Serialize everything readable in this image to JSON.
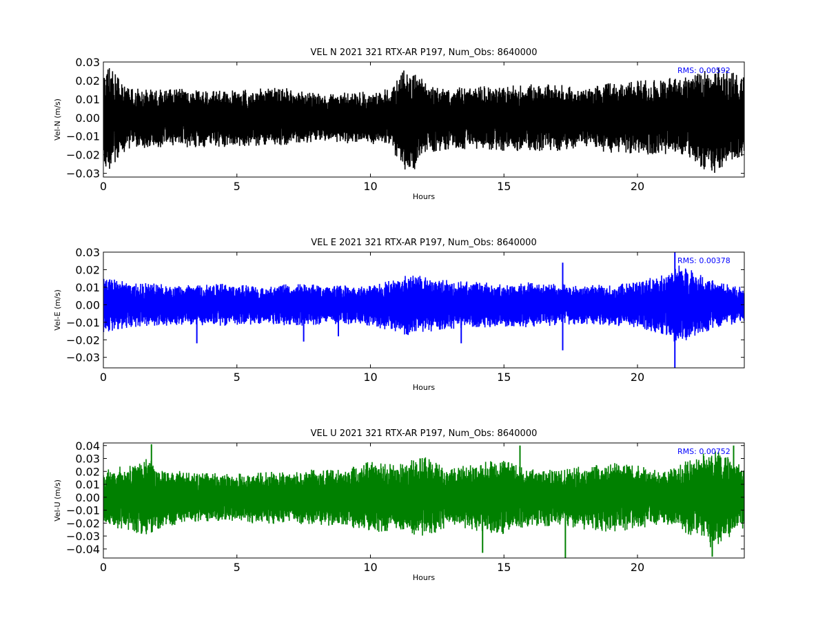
{
  "chart_data": [
    {
      "type": "line",
      "title": "VEL N 2021 321 RTX-AR  P197, Num_Obs: 8640000",
      "xlabel": "Hours",
      "ylabel": "Vel-N (m/s)",
      "xlim": [
        0,
        24
      ],
      "ylim": [
        -0.032,
        0.03
      ],
      "xticks": [
        "0",
        "5",
        "10",
        "15",
        "20"
      ],
      "xtick_values": [
        0,
        5,
        10,
        15,
        20
      ],
      "yticks": [
        "0.03",
        "0.02",
        "0.01",
        "0.00",
        "−0.01",
        "−0.02",
        "−0.03"
      ],
      "ytick_values": [
        0.03,
        0.02,
        0.01,
        0.0,
        -0.01,
        -0.02,
        -0.03
      ],
      "rms_label": "RMS:  0.00592",
      "rms_color": "#0000ff",
      "series": [
        {
          "color": "#000000",
          "envelope": {
            "hours": [
              0,
              0.3,
              0.6,
              1,
              2,
              3,
              4,
              5,
              6,
              7,
              8,
              9,
              10,
              10.8,
              11.3,
              11.7,
              12,
              13,
              14,
              15,
              16,
              17,
              18,
              19,
              20,
              21,
              22,
              22.8,
              23.5,
              24
            ],
            "upper": [
              0.029,
              0.026,
              0.021,
              0.016,
              0.015,
              0.016,
              0.015,
              0.015,
              0.016,
              0.016,
              0.013,
              0.014,
              0.014,
              0.016,
              0.028,
              0.027,
              0.019,
              0.016,
              0.017,
              0.017,
              0.018,
              0.018,
              0.016,
              0.019,
              0.02,
              0.021,
              0.023,
              0.028,
              0.026,
              0.022
            ],
            "lower": [
              -0.031,
              -0.027,
              -0.022,
              -0.017,
              -0.016,
              -0.016,
              -0.016,
              -0.016,
              -0.015,
              -0.015,
              -0.013,
              -0.014,
              -0.014,
              -0.017,
              -0.031,
              -0.028,
              -0.02,
              -0.017,
              -0.017,
              -0.018,
              -0.018,
              -0.018,
              -0.017,
              -0.019,
              -0.02,
              -0.02,
              -0.023,
              -0.031,
              -0.025,
              -0.021
            ]
          }
        }
      ]
    },
    {
      "type": "line",
      "title": "VEL E 2021 321 RTX-AR  P197, Num_Obs: 8640000",
      "xlabel": "Hours",
      "ylabel": "Vel-E (m/s)",
      "xlim": [
        0,
        24
      ],
      "ylim": [
        -0.036,
        0.03
      ],
      "xticks": [
        "0",
        "5",
        "10",
        "15",
        "20"
      ],
      "xtick_values": [
        0,
        5,
        10,
        15,
        20
      ],
      "yticks": [
        "0.03",
        "0.02",
        "0.01",
        "0.00",
        "−0.01",
        "−0.02",
        "−0.03"
      ],
      "ytick_values": [
        0.03,
        0.02,
        0.01,
        0.0,
        -0.01,
        -0.02,
        -0.03
      ],
      "rms_label": "RMS:  0.00378",
      "rms_color": "#0000ff",
      "series": [
        {
          "color": "#0000ff",
          "envelope": {
            "hours": [
              0,
              1,
              2,
              3,
              4,
              5,
              6,
              7,
              8,
              9,
              10,
              11,
              11.5,
              12,
              13,
              14,
              15,
              16,
              17,
              18,
              19,
              20,
              21,
              21.5,
              22,
              23,
              24
            ],
            "upper": [
              0.016,
              0.013,
              0.012,
              0.011,
              0.012,
              0.012,
              0.01,
              0.012,
              0.012,
              0.011,
              0.011,
              0.015,
              0.018,
              0.016,
              0.014,
              0.013,
              0.012,
              0.013,
              0.012,
              0.011,
              0.012,
              0.013,
              0.018,
              0.023,
              0.02,
              0.013,
              0.01
            ],
            "lower": [
              -0.016,
              -0.013,
              -0.012,
              -0.012,
              -0.012,
              -0.012,
              -0.011,
              -0.012,
              -0.012,
              -0.011,
              -0.012,
              -0.016,
              -0.018,
              -0.016,
              -0.014,
              -0.013,
              -0.013,
              -0.013,
              -0.012,
              -0.011,
              -0.012,
              -0.013,
              -0.018,
              -0.023,
              -0.019,
              -0.013,
              -0.01
            ]
          },
          "spikes": [
            {
              "hour": 3.5,
              "value": -0.022
            },
            {
              "hour": 7.5,
              "value": -0.021
            },
            {
              "hour": 8.8,
              "value": -0.018
            },
            {
              "hour": 13.4,
              "value": -0.022
            },
            {
              "hour": 17.2,
              "value": 0.024
            },
            {
              "hour": 17.2,
              "value": -0.026
            },
            {
              "hour": 21.4,
              "value": 0.03
            },
            {
              "hour": 21.4,
              "value": -0.036
            }
          ]
        }
      ]
    },
    {
      "type": "line",
      "title": "VEL U 2021 321 RTX-AR  P197, Num_Obs: 8640000",
      "xlabel": "Hours",
      "ylabel": "Vel-U (m/s)",
      "xlim": [
        0,
        24
      ],
      "ylim": [
        -0.047,
        0.042
      ],
      "xticks": [
        "0",
        "5",
        "10",
        "15",
        "20"
      ],
      "xtick_values": [
        0,
        5,
        10,
        15,
        20
      ],
      "yticks": [
        "0.04",
        "0.03",
        "0.02",
        "0.01",
        "0.00",
        "−0.01",
        "−0.02",
        "−0.03",
        "−0.04"
      ],
      "ytick_values": [
        0.04,
        0.03,
        0.02,
        0.01,
        0.0,
        -0.01,
        -0.02,
        -0.03,
        -0.04
      ],
      "rms_label": "RMS:  0.00752",
      "rms_color": "#0000ff",
      "series": [
        {
          "color": "#008000",
          "envelope": {
            "hours": [
              0,
              1,
              1.8,
              2,
              3,
              4,
              5,
              6,
              7,
              8,
              9,
              10,
              11,
              12,
              13,
              14,
              15,
              16,
              17,
              18,
              19,
              20,
              21,
              22,
              22.8,
              23.5,
              24
            ],
            "upper": [
              0.022,
              0.025,
              0.031,
              0.024,
              0.02,
              0.019,
              0.019,
              0.02,
              0.02,
              0.022,
              0.022,
              0.028,
              0.025,
              0.032,
              0.022,
              0.027,
              0.029,
              0.022,
              0.022,
              0.024,
              0.027,
              0.025,
              0.02,
              0.03,
              0.038,
              0.03,
              0.024
            ],
            "lower": [
              -0.022,
              -0.026,
              -0.031,
              -0.025,
              -0.02,
              -0.019,
              -0.019,
              -0.021,
              -0.02,
              -0.022,
              -0.022,
              -0.028,
              -0.025,
              -0.032,
              -0.022,
              -0.027,
              -0.029,
              -0.022,
              -0.023,
              -0.025,
              -0.027,
              -0.025,
              -0.021,
              -0.03,
              -0.041,
              -0.03,
              -0.024
            ]
          },
          "spikes": [
            {
              "hour": 1.8,
              "value": 0.041
            },
            {
              "hour": 14.2,
              "value": -0.043
            },
            {
              "hour": 15.6,
              "value": 0.04
            },
            {
              "hour": 17.3,
              "value": -0.047
            },
            {
              "hour": 22.8,
              "value": -0.046
            },
            {
              "hour": 23.6,
              "value": 0.04
            }
          ]
        }
      ]
    }
  ]
}
